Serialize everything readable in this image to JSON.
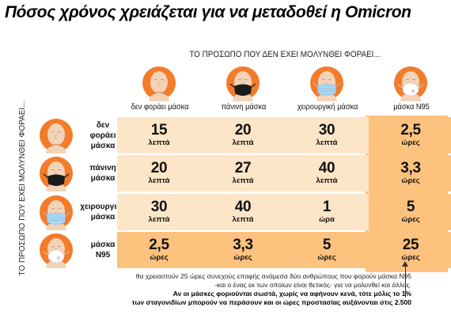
{
  "title": "Πόσος χρόνος χρειάζεται για να μεταδοθεί η Omicron",
  "top_caption": "ΤΟ ΠΡΟΣΩΠΟ ΠΟΥ ΔΕΝ ΕΧΕΙ ΜΟΛΥΝΘΕΙ ΦΟΡΑΕΙ...",
  "side_caption": "ΤΟ ΠΡΟΣΩΠΟ ΠΟΥ ΕΧΕΙ ΜΟΛΥΝΘΕΙ ΦΟΡΑΕΙ...",
  "columns": [
    {
      "label": "δεν φοράει μάσκα",
      "icon": "bare-face-icon"
    },
    {
      "label": "πάνινη μάσκα",
      "icon": "cloth-mask-face-icon"
    },
    {
      "label": "χειρουργική μάσκα",
      "icon": "surgical-mask-face-icon"
    },
    {
      "label": "μάσκα Ν95",
      "icon": "n95-mask-face-icon"
    }
  ],
  "rows": [
    {
      "label_lines": [
        "δεν",
        "φοράει",
        "μάσκα"
      ],
      "icon": "bare-face-icon",
      "cells": [
        {
          "num": "15",
          "unit": "λεπτά"
        },
        {
          "num": "20",
          "unit": "λεπτά"
        },
        {
          "num": "30",
          "unit": "λεπτά"
        },
        {
          "num": "2,5",
          "unit": "ώρες"
        }
      ]
    },
    {
      "label_lines": [
        "πάνινη",
        "μάσκα"
      ],
      "icon": "cloth-mask-face-icon",
      "cells": [
        {
          "num": "20",
          "unit": "λεπτά"
        },
        {
          "num": "27",
          "unit": "λεπτά"
        },
        {
          "num": "40",
          "unit": "λεπτά"
        },
        {
          "num": "3,3",
          "unit": "ώρες"
        }
      ]
    },
    {
      "label_lines": [
        "χειρουργική",
        "μάσκα"
      ],
      "icon": "surgical-mask-face-icon",
      "cells": [
        {
          "num": "30",
          "unit": "λεπτά"
        },
        {
          "num": "40",
          "unit": "λεπτά"
        },
        {
          "num": "1",
          "unit": "ώρα"
        },
        {
          "num": "5",
          "unit": "ώρες"
        }
      ]
    },
    {
      "label_lines": [
        "μάσκα",
        "Ν95"
      ],
      "icon": "n95-mask-face-icon",
      "cells": [
        {
          "num": "2,5",
          "unit": "ώρες"
        },
        {
          "num": "3,3",
          "unit": "ώρες"
        },
        {
          "num": "5",
          "unit": "ώρες"
        },
        {
          "num": "25",
          "unit": "ώρες"
        }
      ]
    }
  ],
  "note": {
    "line1": "θα χρειαστούν 25 ώρες συνεχούς επαφής ανάμεσα δύο ανθρώπους που φορούν μάσκα Ν95",
    "line2": "-και ο ένας εκ των οποίων είναι θετικός- για να μολυνθεί και άλλος.",
    "line3": "Αν οι μάσκες φοριούνται σωστά, χωρίς να αφήνουν κενά, τότε μόλις το 1%",
    "line4": "των σταγονιδίων μπορούν να περάσουν και οι ώρες προστασίας αυξάνονται στις 2.500"
  },
  "colors": {
    "cell": "#fde5c8",
    "highlight": "#fdc27e",
    "icon_circle": "#f37b2a",
    "skin": "#f3d3b8"
  }
}
